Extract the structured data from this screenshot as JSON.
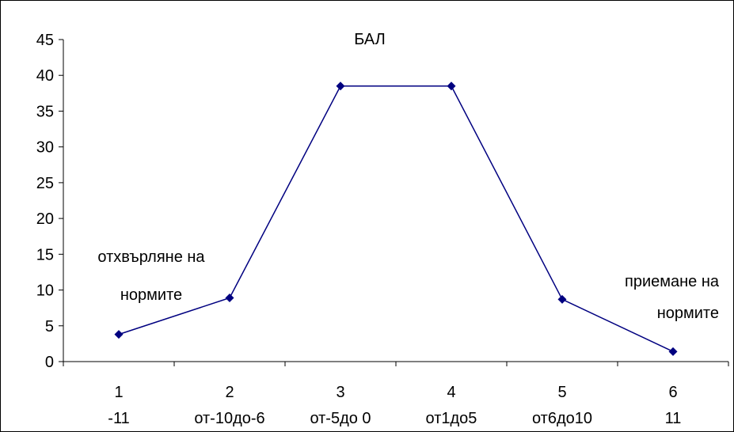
{
  "chart_data": {
    "type": "line",
    "title": "БАЛ",
    "xlabel": "",
    "ylabel": "",
    "ylim": [
      0,
      45
    ],
    "yticks": [
      0,
      5,
      10,
      15,
      20,
      25,
      30,
      35,
      40,
      45
    ],
    "categories": [
      {
        "num": "1",
        "range": "-11"
      },
      {
        "num": "2",
        "range": "от-10до-6"
      },
      {
        "num": "3",
        "range": "от-5до 0"
      },
      {
        "num": "4",
        "range": "от1до5"
      },
      {
        "num": "5",
        "range": "от6до10"
      },
      {
        "num": "6",
        "range": "11"
      }
    ],
    "series": [
      {
        "values": [
          3.8,
          8.9,
          38.5,
          38.5,
          8.7,
          1.4
        ]
      }
    ],
    "line_color": "#000080",
    "marker_color": "#000080",
    "grid": false,
    "annotations": [
      {
        "lines": [
          "отхвърляне на",
          "нормите"
        ]
      },
      {
        "lines": [
          "приемане на",
          "нормите"
        ]
      }
    ]
  }
}
